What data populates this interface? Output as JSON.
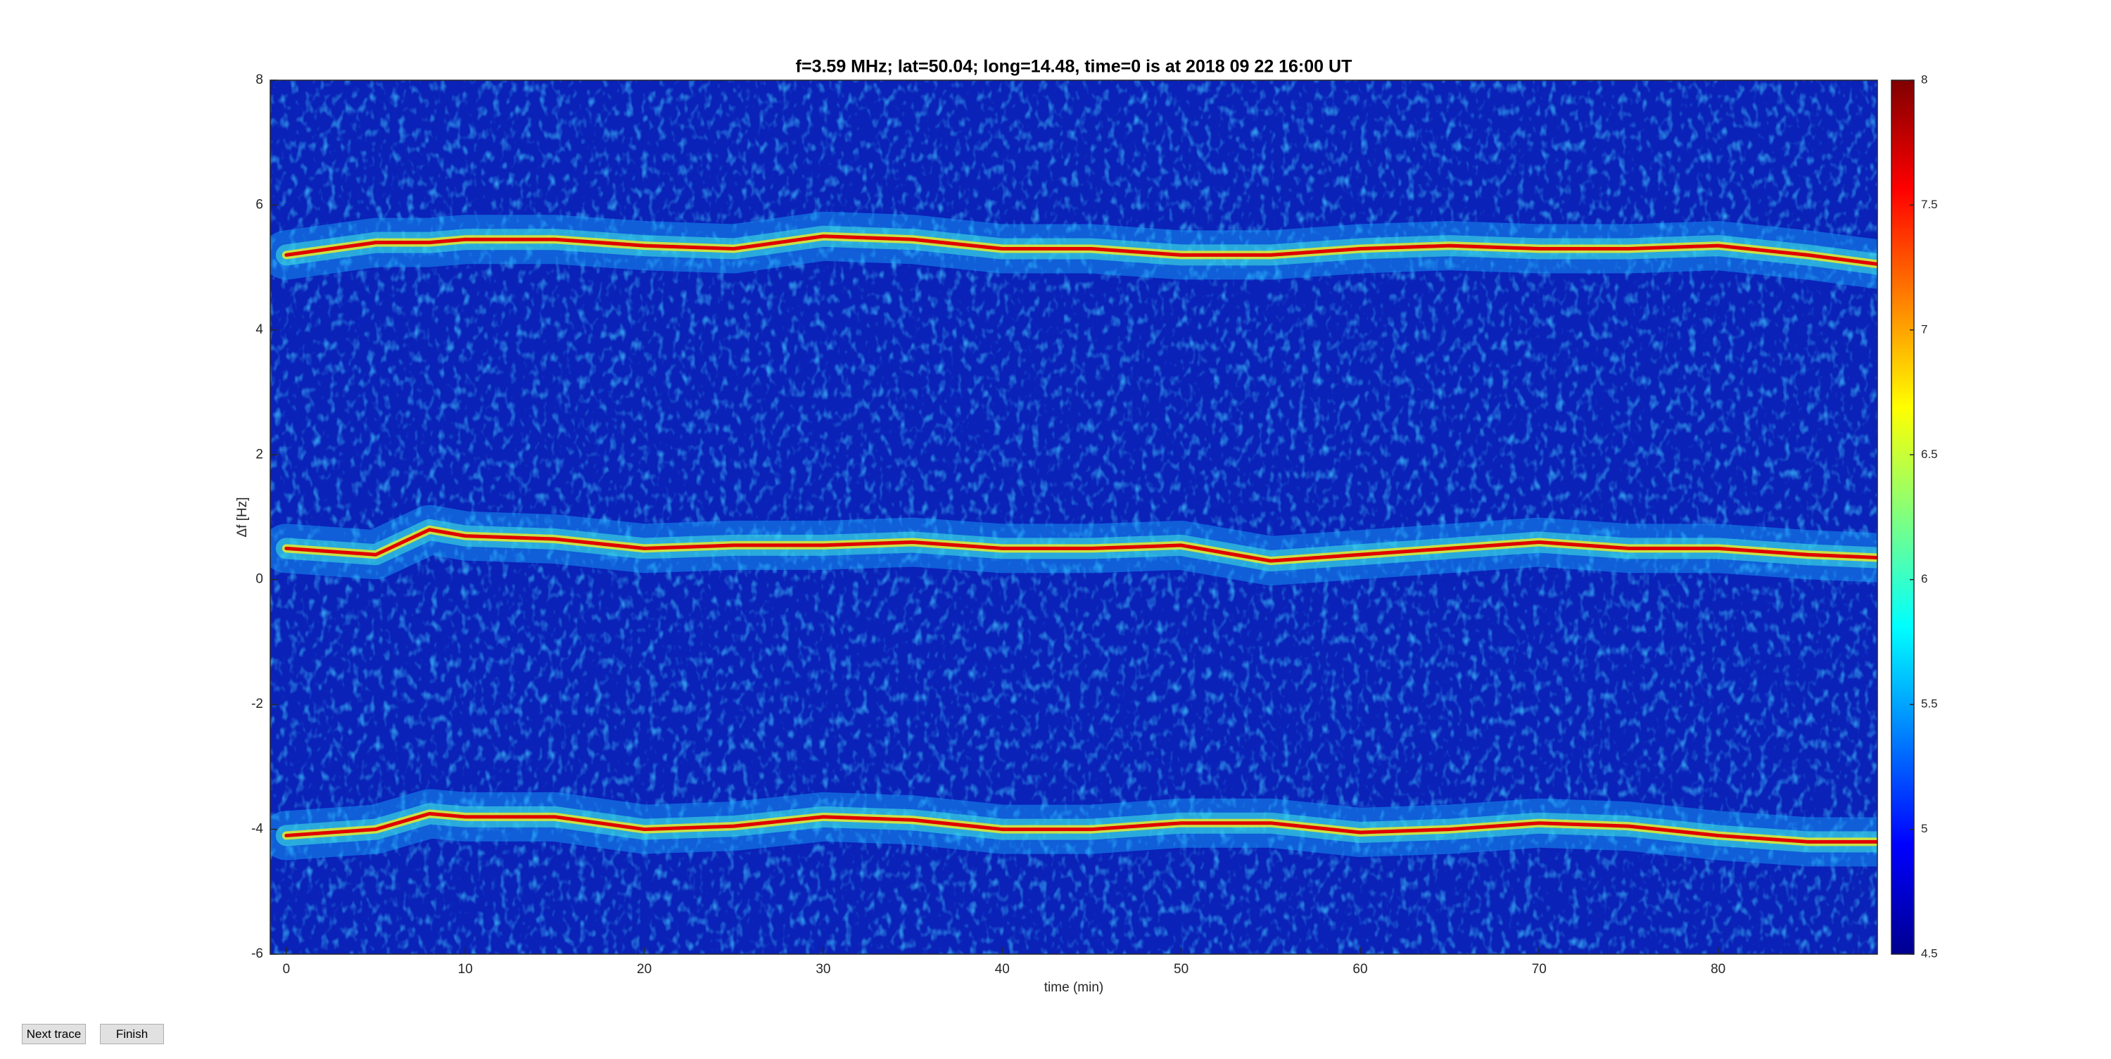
{
  "chart_data": {
    "type": "line",
    "title": "f=3.59 MHz;  lat=50.04; long=14.48, time=0 is at 2018 09 22 16:00 UT",
    "x_label": "time (min)",
    "y_label": "Δf [Hz]",
    "x": [
      0,
      5,
      8,
      10,
      15,
      20,
      25,
      30,
      35,
      40,
      45,
      50,
      55,
      60,
      65,
      70,
      75,
      80,
      85,
      89
    ],
    "series": [
      {
        "color": "#e00000",
        "values": [
          5.2,
          5.4,
          5.4,
          5.45,
          5.45,
          5.35,
          5.3,
          5.5,
          5.45,
          5.3,
          5.3,
          5.2,
          5.2,
          5.3,
          5.35,
          5.3,
          5.3,
          5.35,
          5.2,
          5.05
        ]
      },
      {
        "color": "#e00000",
        "values": [
          0.5,
          0.4,
          0.8,
          0.7,
          0.65,
          0.5,
          0.55,
          0.55,
          0.6,
          0.5,
          0.5,
          0.55,
          0.3,
          0.4,
          0.5,
          0.6,
          0.5,
          0.5,
          0.4,
          0.35
        ]
      },
      {
        "color": "#e00000",
        "values": [
          -4.1,
          -4.0,
          -3.75,
          -3.8,
          -3.8,
          -4.0,
          -3.95,
          -3.8,
          -3.85,
          -4.0,
          -4.0,
          -3.9,
          -3.9,
          -4.05,
          -4.0,
          -3.9,
          -3.95,
          -4.1,
          -4.2,
          -4.2
        ]
      }
    ],
    "xlim": [
      -0.9,
      88.9
    ],
    "xticks": [
      0,
      10,
      20,
      30,
      40,
      50,
      60,
      70,
      80
    ],
    "ylim": [
      -6,
      8
    ],
    "yticks": [
      -6,
      -4,
      -2,
      0,
      2,
      4,
      6,
      8
    ],
    "colormap": "jet",
    "clim": [
      4.5,
      8
    ],
    "cticks": [
      4.5,
      5,
      5.5,
      6,
      6.5,
      7,
      7.5,
      8
    ]
  },
  "buttons": [
    "Next trace",
    "Finish"
  ]
}
